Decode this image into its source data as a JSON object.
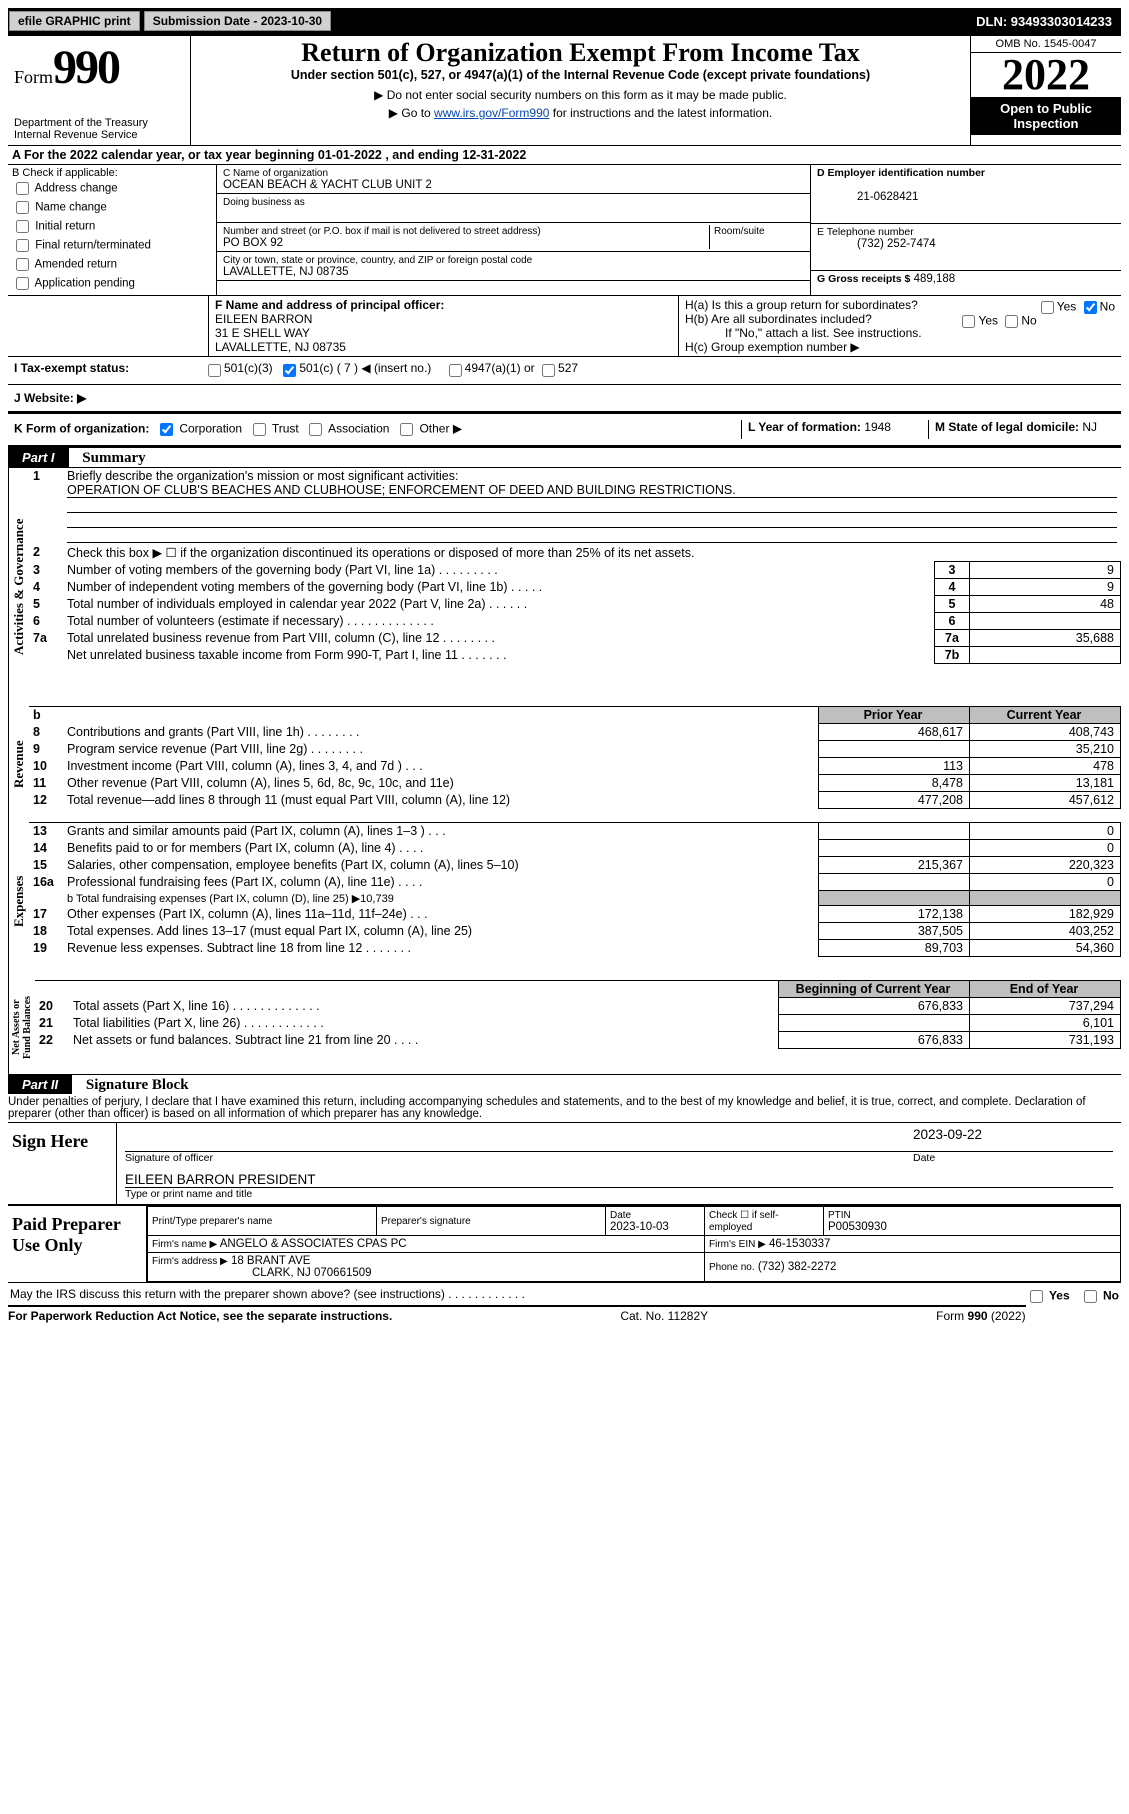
{
  "topbar": {
    "efile_label": "efile GRAPHIC print",
    "submission_label": "Submission Date - 2023-10-30",
    "dln": "DLN: 93493303014233"
  },
  "header": {
    "form_word": "Form",
    "form_num": "990",
    "dept": "Department of the Treasury",
    "irs": "Internal Revenue Service",
    "title": "Return of Organization Exempt From Income Tax",
    "subtitle": "Under section 501(c), 527, or 4947(a)(1) of the Internal Revenue Code (except private foundations)",
    "note1": "▶ Do not enter social security numbers on this form as it may be made public.",
    "note2_pre": "▶ Go to ",
    "note2_link": "www.irs.gov/Form990",
    "note2_post": " for instructions and the latest information.",
    "omb": "OMB No. 1545-0047",
    "year": "2022",
    "open1": "Open to Public",
    "open2": "Inspection"
  },
  "period": {
    "a_line": "A For the 2022 calendar year, or tax year beginning 01-01-2022    , and ending 12-31-2022"
  },
  "sectionB": {
    "heading": "B Check if applicable:",
    "opts": [
      "Address change",
      "Name change",
      "Initial return",
      "Final return/terminated",
      "Amended return",
      "Application pending"
    ]
  },
  "sectionC": {
    "c_name_lbl": "C Name of organization",
    "c_name": "OCEAN BEACH & YACHT CLUB UNIT 2",
    "dba_lbl": "Doing business as",
    "dba": "",
    "addr_lbl": "Number and street (or P.O. box if mail is not delivered to street address)",
    "room_lbl": "Room/suite",
    "addr": "PO BOX 92",
    "city_lbl": "City or town, state or province, country, and ZIP or foreign postal code",
    "city": "LAVALLETTE, NJ  08735"
  },
  "sectionD": {
    "lbl": "D Employer identification number",
    "val": "21-0628421"
  },
  "sectionE": {
    "lbl": "E Telephone number",
    "val": "(732) 252-7474"
  },
  "sectionG": {
    "lbl": "G Gross receipts $",
    "val": "489,188"
  },
  "sectionF": {
    "lbl": "F Name and address of principal officer:",
    "name": "EILEEN BARRON",
    "addr1": "31 E SHELL WAY",
    "addr2": "LAVALLETTE, NJ  08735"
  },
  "sectionH": {
    "a": "H(a)  Is this a group return for subordinates?",
    "b": "H(b)  Are all subordinates included?",
    "note": "If \"No,\" attach a list. See instructions.",
    "c": "H(c)  Group exemption number ▶",
    "yes": "Yes",
    "no": "No"
  },
  "sectionI": {
    "lbl": "I    Tax-exempt status:",
    "o1": "501(c)(3)",
    "o2": "501(c) ( 7 ) ◀ (insert no.)",
    "o3": "4947(a)(1) or",
    "o4": "527"
  },
  "sectionJ": {
    "lbl": "J    Website: ▶"
  },
  "sectionK": {
    "lbl": "K Form of organization:",
    "o1": "Corporation",
    "o2": "Trust",
    "o3": "Association",
    "o4": "Other ▶"
  },
  "sectionL": {
    "lbl": "L Year of formation:",
    "val": "1948"
  },
  "sectionM": {
    "lbl": "M State of legal domicile:",
    "val": "NJ"
  },
  "partI": {
    "tag": "Part I",
    "title": "Summary"
  },
  "summary": {
    "line1_lbl": "Briefly describe the organization's mission or most significant activities:",
    "line1_val": "OPERATION OF CLUB'S BEACHES AND CLUBHOUSE; ENFORCEMENT OF DEED AND BUILDING RESTRICTIONS.",
    "line2": "Check this box ▶ ☐  if the organization discontinued its operations or disposed of more than 25% of its net assets.",
    "rows_top": [
      {
        "n": "3",
        "t": "Number of voting members of the governing body (Part VI, line 1a)   .    .    .    .    .    .    .    .    .",
        "box": "3",
        "v": "9"
      },
      {
        "n": "4",
        "t": "Number of independent voting members of the governing body (Part VI, line 1b)    .    .    .    .    .",
        "box": "4",
        "v": "9"
      },
      {
        "n": "5",
        "t": "Total number of individuals employed in calendar year 2022 (Part V, line 2a)    .    .    .    .    .    .",
        "box": "5",
        "v": "48"
      },
      {
        "n": "6",
        "t": "Total number of volunteers (estimate if necessary)    .    .    .    .    .    .    .    .    .    .    .    .    .",
        "box": "6",
        "v": ""
      },
      {
        "n": "7a",
        "t": "Total unrelated business revenue from Part VIII, column (C), line 12   .    .    .    .    .    .    .    .",
        "box": "7a",
        "v": "35,688"
      },
      {
        "n": "",
        "t": "Net unrelated business taxable income from Form 990-T, Part I, line 11    .    .    .    .    .    .    .",
        "box": "7b",
        "v": ""
      }
    ],
    "col_headers": {
      "b": "b",
      "prior": "Prior Year",
      "current": "Current Year"
    },
    "revenue": [
      {
        "n": "8",
        "t": "Contributions and grants (Part VIII, line 1h)    .    .    .    .    .    .    .    .",
        "p": "468,617",
        "c": "408,743"
      },
      {
        "n": "9",
        "t": "Program service revenue (Part VIII, line 2g)    .    .    .    .    .    .    .    .",
        "p": "",
        "c": "35,210"
      },
      {
        "n": "10",
        "t": "Investment income (Part VIII, column (A), lines 3, 4, and 7d )    .    .    .",
        "p": "113",
        "c": "478"
      },
      {
        "n": "11",
        "t": "Other revenue (Part VIII, column (A), lines 5, 6d, 8c, 9c, 10c, and 11e)",
        "p": "8,478",
        "c": "13,181"
      },
      {
        "n": "12",
        "t": "Total revenue—add lines 8 through 11 (must equal Part VIII, column (A), line 12)",
        "p": "477,208",
        "c": "457,612"
      }
    ],
    "expenses": [
      {
        "n": "13",
        "t": "Grants and similar amounts paid (Part IX, column (A), lines 1–3 )    .    .    .",
        "p": "",
        "c": "0"
      },
      {
        "n": "14",
        "t": "Benefits paid to or for members (Part IX, column (A), line 4)    .    .    .    .",
        "p": "",
        "c": "0"
      },
      {
        "n": "15",
        "t": "Salaries, other compensation, employee benefits (Part IX, column (A), lines 5–10)",
        "p": "215,367",
        "c": "220,323"
      },
      {
        "n": "16a",
        "t": "Professional fundraising fees (Part IX, column (A), line 11e)    .    .    .    .",
        "p": "",
        "c": "0"
      }
    ],
    "line16b_lbl": "b   Total fundraising expenses (Part IX, column (D), line 25) ▶",
    "line16b_val": "10,739",
    "expenses2": [
      {
        "n": "17",
        "t": "Other expenses (Part IX, column (A), lines 11a–11d, 11f–24e)   .    .    .",
        "p": "172,138",
        "c": "182,929"
      },
      {
        "n": "18",
        "t": "Total expenses. Add lines 13–17 (must equal Part IX, column (A), line 25)",
        "p": "387,505",
        "c": "403,252"
      },
      {
        "n": "19",
        "t": "Revenue less expenses. Subtract line 18 from line 12  .    .    .    .    .    .    .",
        "p": "89,703",
        "c": "54,360"
      }
    ],
    "na_headers": {
      "b": "Beginning of Current Year",
      "e": "End of Year"
    },
    "netassets": [
      {
        "n": "20",
        "t": "Total assets (Part X, line 16)   .    .    .    .    .    .    .    .    .    .    .    .    .",
        "p": "676,833",
        "c": "737,294"
      },
      {
        "n": "21",
        "t": "Total liabilities (Part X, line 26)   .    .    .    .    .    .    .    .    .    .    .    .",
        "p": "",
        "c": "6,101"
      },
      {
        "n": "22",
        "t": "Net assets or fund balances. Subtract line 21 from line 20   .    .    .    .",
        "p": "676,833",
        "c": "731,193"
      }
    ],
    "vtabs": {
      "ag": "Activities & Governance",
      "rev": "Revenue",
      "exp": "Expenses",
      "na": "Net Assets or\nFund Balances"
    }
  },
  "partII": {
    "tag": "Part II",
    "title": "Signature Block"
  },
  "sig": {
    "perjury": "Under penalties of perjury, I declare that I have examined this return, including accompanying schedules and statements, and to the best of my knowledge and belief, it is true, correct, and complete. Declaration of preparer (other than officer) is based on all information of which preparer has any knowledge.",
    "sign_here": "Sign Here",
    "sig_officer_lbl": "Signature of officer",
    "date_lbl": "Date",
    "date_val": "2023-09-22",
    "officer_name": "EILEEN BARRON  PRESIDENT",
    "type_name_lbl": "Type or print name and title"
  },
  "prep": {
    "title": "Paid Preparer Use Only",
    "print_lbl": "Print/Type preparer's name",
    "sig_lbl": "Preparer's signature",
    "date_lbl": "Date",
    "date_val": "2023-10-03",
    "check_lbl": "Check ☐  if self-employed",
    "ptin_lbl": "PTIN",
    "ptin_val": "P00530930",
    "firm_name_lbl": "Firm's name    ▶",
    "firm_name": "ANGELO & ASSOCIATES CPAS PC",
    "firm_ein_lbl": "Firm's EIN ▶",
    "firm_ein": "46-1530337",
    "firm_addr_lbl": "Firm's address ▶",
    "firm_addr1": "18 BRANT AVE",
    "firm_addr2": "CLARK, NJ  070661509",
    "phone_lbl": "Phone no.",
    "phone": "(732) 382-2272"
  },
  "discuss": {
    "q": "May the IRS discuss this return with the preparer shown above? (see instructions)    .    .    .    .    .    .    .    .    .    .    .    .",
    "yes": "Yes",
    "no": "No"
  },
  "footer": {
    "left": "For Paperwork Reduction Act Notice, see the separate instructions.",
    "mid": "Cat. No. 11282Y",
    "right": "Form 990 (2022)"
  }
}
